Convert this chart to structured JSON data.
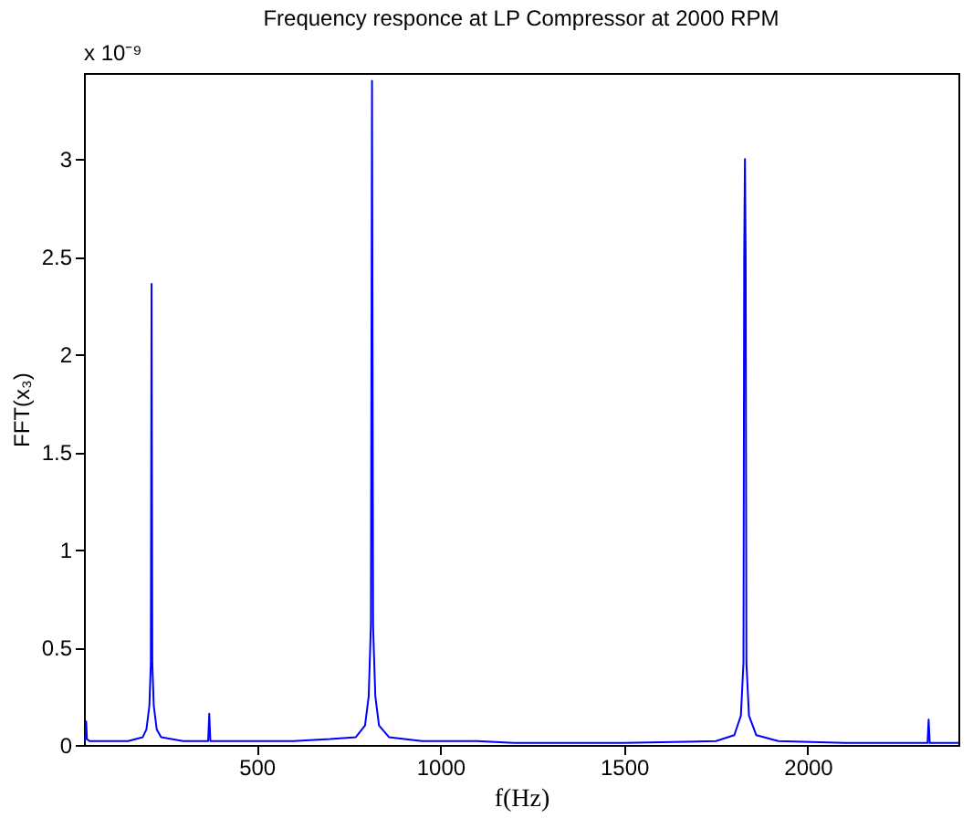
{
  "chart_data": {
    "type": "line",
    "title": "Frequency responce at LP Compressor at 2000 RPM",
    "xlabel": "f(Hz)",
    "ylabel": "FFT(x₃)",
    "annotations": [
      "x 10⁻⁹"
    ],
    "x": [
      30,
      34,
      36,
      38,
      45,
      100,
      150,
      190,
      200,
      208,
      212,
      214,
      216,
      220,
      228,
      240,
      300,
      368,
      371,
      374,
      450,
      600,
      700,
      770,
      795,
      805,
      811,
      814,
      817,
      823,
      833,
      860,
      950,
      1100,
      1200,
      1500,
      1750,
      1800,
      1818,
      1825,
      1827,
      1829,
      1831,
      1833,
      1840,
      1860,
      1920,
      2100,
      2326,
      2329,
      2332,
      2410
    ],
    "series": [
      {
        "color": "#0000ff",
        "values": [
          0.02,
          0.03,
          0.12,
          0.03,
          0.02,
          0.02,
          0.02,
          0.04,
          0.08,
          0.2,
          0.42,
          2.36,
          0.42,
          0.2,
          0.08,
          0.04,
          0.02,
          0.02,
          0.16,
          0.02,
          0.02,
          0.02,
          0.03,
          0.04,
          0.1,
          0.25,
          0.62,
          3.4,
          0.6,
          0.25,
          0.1,
          0.04,
          0.02,
          0.02,
          0.01,
          0.01,
          0.02,
          0.05,
          0.15,
          0.42,
          2.5,
          3.0,
          2.5,
          0.42,
          0.15,
          0.05,
          0.02,
          0.01,
          0.01,
          0.13,
          0.01,
          0.01
        ]
      }
    ],
    "xlim": [
      30,
      2410
    ],
    "ylim": [
      0,
      3.44
    ],
    "xticks": [
      500,
      1000,
      1500,
      2000
    ],
    "yticks": [
      0,
      0.5,
      1,
      1.5,
      2,
      2.5,
      3
    ],
    "grid": false,
    "legend": false,
    "marker": "none",
    "line_style": "solid"
  }
}
